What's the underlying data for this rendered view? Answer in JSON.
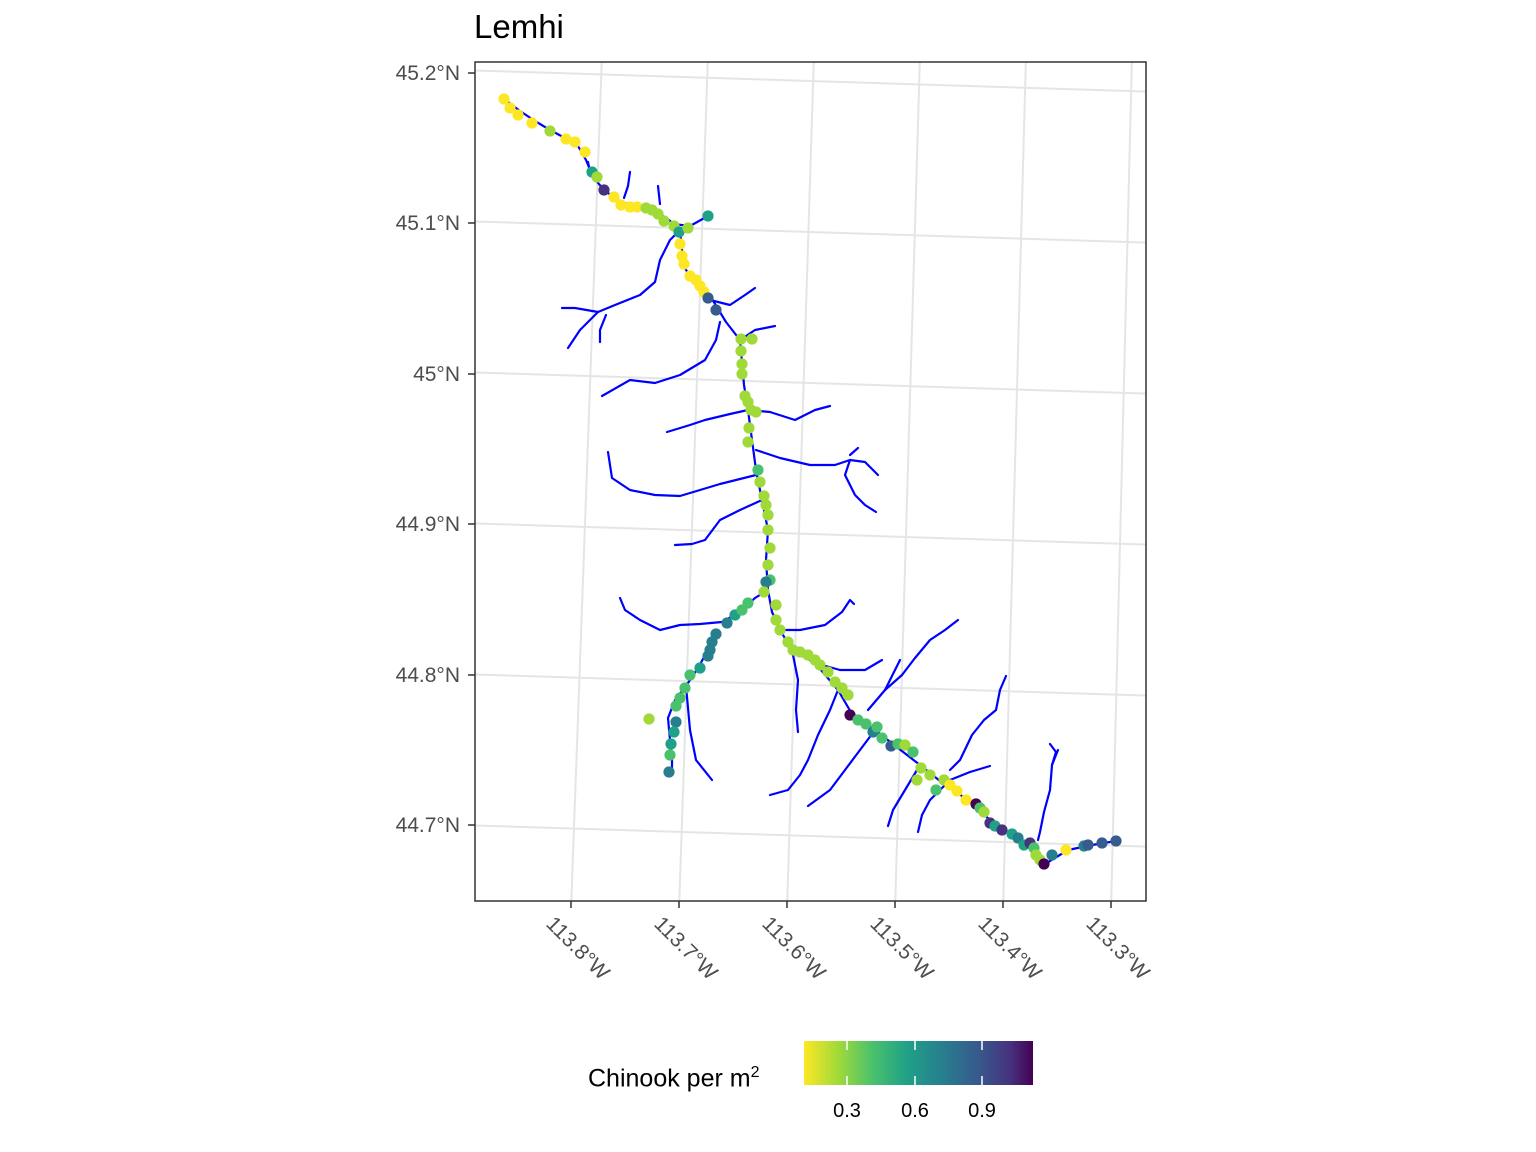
{
  "title": "Lemhi",
  "lat_ticks": [
    "45.2°N",
    "45.1°N",
    "45°N",
    "44.9°N",
    "44.8°N",
    "44.7°N"
  ],
  "lon_ticks": [
    "113.8°W",
    "113.7°W",
    "113.6°W",
    "113.5°W",
    "113.4°W",
    "113.3°W"
  ],
  "legend": {
    "title_text": "Chinook per m",
    "title_superscript": "2",
    "ticks": [
      "0.3",
      "0.6",
      "0.9"
    ]
  },
  "colors": {
    "stream": "#0000ff",
    "palette": [
      "#fde725",
      "#a0da39",
      "#4ac16d",
      "#1fa187",
      "#277f8e",
      "#365c8d",
      "#46327e",
      "#440154"
    ]
  }
}
